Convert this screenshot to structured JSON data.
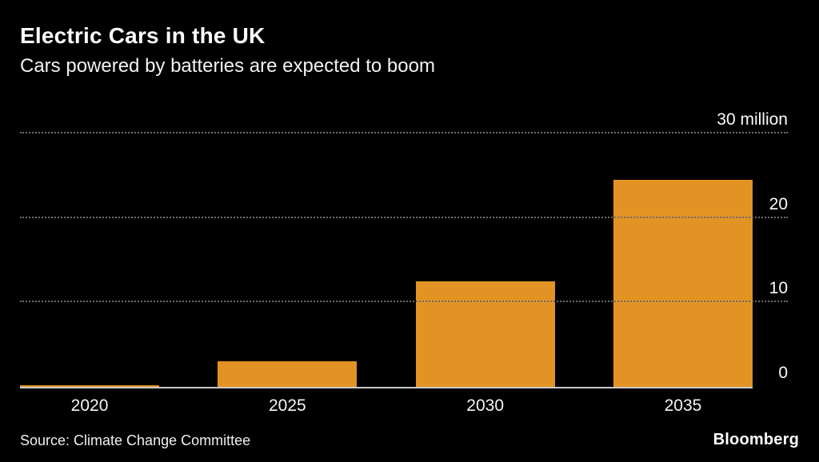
{
  "header": {
    "title": "Electric Cars in the UK",
    "subtitle": "Cars powered by batteries are expected to boom"
  },
  "chart_data": {
    "type": "bar",
    "categories": [
      "2020",
      "2025",
      "2030",
      "2035"
    ],
    "values": [
      0.2,
      3,
      12.5,
      24.5
    ],
    "unit": "million cars",
    "title": "Electric Cars in the UK",
    "subtitle": "Cars powered by batteries are expected to boom",
    "xlabel": "",
    "ylabel": "",
    "ylim": [
      0,
      30
    ],
    "yticks": [
      {
        "value": 30,
        "label": "30 million"
      },
      {
        "value": 20,
        "label": "20"
      },
      {
        "value": 10,
        "label": "10"
      },
      {
        "value": 0,
        "label": "0"
      }
    ],
    "gridline_values": [
      30,
      20,
      10
    ],
    "grid": "dotted-horizontal",
    "legend_position": "none",
    "bar_color": "#E39324",
    "background_color": "#000000",
    "text_color": "#FFFFFF"
  },
  "footer": {
    "source": "Source: Climate Change Committee",
    "brand": "Bloomberg"
  }
}
